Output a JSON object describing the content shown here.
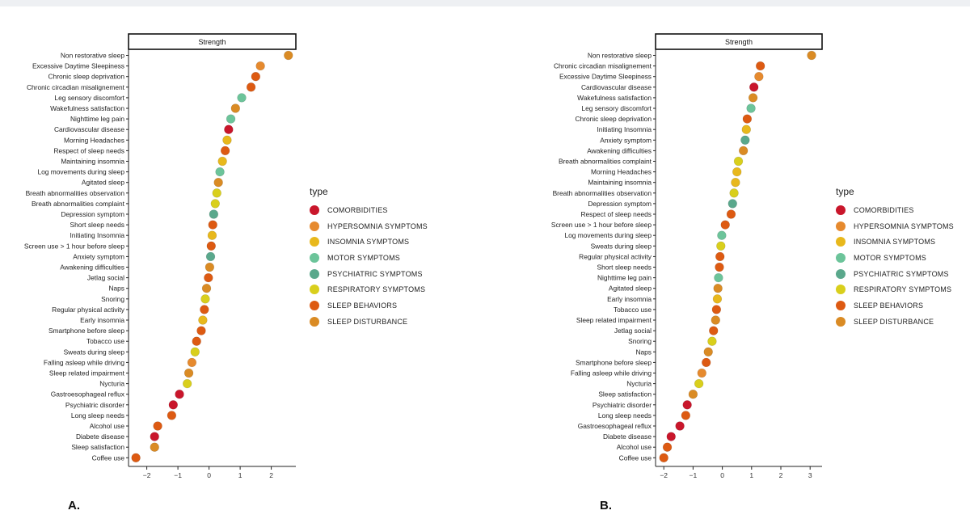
{
  "colors": {
    "COMORBIDITIES": "#c9162b",
    "HYPERSOMNIA SYMPTOMS": "#e68a2e",
    "INSOMNIA SYMPTOMS": "#e8b81c",
    "MOTOR SYMPTOMS": "#6cc49a",
    "PSYCHIATRIC SYMPTOMS": "#5aa88c",
    "RESPIRATORY SYMPTOMS": "#d9cf1c",
    "SLEEP BEHAVIORS": "#dd5a12",
    "SLEEP DISTURBANCE": "#da8b24"
  },
  "legend": {
    "title": "type",
    "items": [
      "COMORBIDITIES",
      "HYPERSOMNIA SYMPTOMS",
      "INSOMNIA SYMPTOMS",
      "MOTOR SYMPTOMS",
      "PSYCHIATRIC SYMPTOMS",
      "RESPIRATORY SYMPTOMS",
      "SLEEP BEHAVIORS",
      "SLEEP DISTURBANCE"
    ]
  },
  "chart_data": [
    {
      "panel": "A.",
      "type": "scatter",
      "title": "Strength",
      "xlim": [
        -2.5,
        2.7
      ],
      "xticks": [
        -2,
        -1,
        0,
        1,
        2
      ],
      "points": [
        {
          "label": "Non restorative sleep",
          "value": 2.55,
          "type": "SLEEP DISTURBANCE"
        },
        {
          "label": "Excessive Daytime Sleepiness",
          "value": 1.65,
          "type": "HYPERSOMNIA SYMPTOMS"
        },
        {
          "label": "Chronic sleep deprivation",
          "value": 1.5,
          "type": "SLEEP BEHAVIORS"
        },
        {
          "label": "Chronic circadian misalignement",
          "value": 1.35,
          "type": "SLEEP BEHAVIORS"
        },
        {
          "label": "Leg sensory discomfort",
          "value": 1.05,
          "type": "MOTOR SYMPTOMS"
        },
        {
          "label": "Wakefulness satisfaction",
          "value": 0.85,
          "type": "SLEEP DISTURBANCE"
        },
        {
          "label": "Nighttime leg pain",
          "value": 0.7,
          "type": "MOTOR SYMPTOMS"
        },
        {
          "label": "Cardiovascular disease",
          "value": 0.63,
          "type": "COMORBIDITIES"
        },
        {
          "label": "Morning Headaches",
          "value": 0.58,
          "type": "INSOMNIA SYMPTOMS"
        },
        {
          "label": "Respect of sleep needs",
          "value": 0.52,
          "type": "SLEEP BEHAVIORS"
        },
        {
          "label": "Maintaining insomnia",
          "value": 0.43,
          "type": "INSOMNIA SYMPTOMS"
        },
        {
          "label": "Log movements during sleep",
          "value": 0.35,
          "type": "MOTOR SYMPTOMS"
        },
        {
          "label": "Agitated sleep",
          "value": 0.3,
          "type": "SLEEP DISTURBANCE"
        },
        {
          "label": "Breath abnormalities observation",
          "value": 0.25,
          "type": "RESPIRATORY SYMPTOMS"
        },
        {
          "label": "Breath abnormalities complaint",
          "value": 0.2,
          "type": "RESPIRATORY SYMPTOMS"
        },
        {
          "label": "Depression symptom",
          "value": 0.15,
          "type": "PSYCHIATRIC SYMPTOMS"
        },
        {
          "label": "Short sleep needs",
          "value": 0.12,
          "type": "SLEEP BEHAVIORS"
        },
        {
          "label": "Initiating Insomnia",
          "value": 0.1,
          "type": "INSOMNIA SYMPTOMS"
        },
        {
          "label": "Screen use > 1 hour before sleep",
          "value": 0.07,
          "type": "SLEEP BEHAVIORS"
        },
        {
          "label": "Anxiety symptom",
          "value": 0.05,
          "type": "PSYCHIATRIC SYMPTOMS"
        },
        {
          "label": "Awakening difficulties",
          "value": 0.02,
          "type": "SLEEP DISTURBANCE"
        },
        {
          "label": "Jetlag social",
          "value": -0.02,
          "type": "SLEEP BEHAVIORS"
        },
        {
          "label": "Naps",
          "value": -0.08,
          "type": "SLEEP DISTURBANCE"
        },
        {
          "label": "Snoring",
          "value": -0.12,
          "type": "RESPIRATORY SYMPTOMS"
        },
        {
          "label": "Regular physical activity",
          "value": -0.15,
          "type": "SLEEP BEHAVIORS"
        },
        {
          "label": "Early insomnia",
          "value": -0.2,
          "type": "INSOMNIA SYMPTOMS"
        },
        {
          "label": "Smartphone before sleep",
          "value": -0.25,
          "type": "SLEEP BEHAVIORS"
        },
        {
          "label": "Tobacco use",
          "value": -0.4,
          "type": "SLEEP BEHAVIORS"
        },
        {
          "label": "Sweats during sleep",
          "value": -0.45,
          "type": "RESPIRATORY SYMPTOMS"
        },
        {
          "label": "Falling asleep while driving",
          "value": -0.55,
          "type": "HYPERSOMNIA SYMPTOMS"
        },
        {
          "label": "Sleep related impairment",
          "value": -0.65,
          "type": "SLEEP DISTURBANCE"
        },
        {
          "label": "Nycturia",
          "value": -0.7,
          "type": "RESPIRATORY SYMPTOMS"
        },
        {
          "label": "Gastroesophageal reflux",
          "value": -0.95,
          "type": "COMORBIDITIES"
        },
        {
          "label": "Psychiatric disorder",
          "value": -1.15,
          "type": "COMORBIDITIES"
        },
        {
          "label": "Long sleep needs",
          "value": -1.2,
          "type": "SLEEP BEHAVIORS"
        },
        {
          "label": "Alcohol use",
          "value": -1.65,
          "type": "SLEEP BEHAVIORS"
        },
        {
          "label": "Diabete disease",
          "value": -1.75,
          "type": "COMORBIDITIES"
        },
        {
          "label": "Sleep satisfaction",
          "value": -1.75,
          "type": "SLEEP DISTURBANCE"
        },
        {
          "label": "Coffee use",
          "value": -2.35,
          "type": "SLEEP BEHAVIORS"
        }
      ]
    },
    {
      "panel": "B.",
      "type": "scatter",
      "title": "Strength",
      "xlim": [
        -2.2,
        3.3
      ],
      "xticks": [
        -2,
        -1,
        0,
        1,
        2,
        3
      ],
      "points": [
        {
          "label": "Non restorative sleep",
          "value": 3.05,
          "type": "SLEEP DISTURBANCE"
        },
        {
          "label": "Chronic circadian misalignement",
          "value": 1.3,
          "type": "SLEEP BEHAVIORS"
        },
        {
          "label": "Excessive Daytime Sleepiness",
          "value": 1.25,
          "type": "HYPERSOMNIA SYMPTOMS"
        },
        {
          "label": "Cardiovascular disease",
          "value": 1.08,
          "type": "COMORBIDITIES"
        },
        {
          "label": "Wakefulness satisfaction",
          "value": 1.05,
          "type": "SLEEP DISTURBANCE"
        },
        {
          "label": "Leg sensory discomfort",
          "value": 0.98,
          "type": "MOTOR SYMPTOMS"
        },
        {
          "label": "Chronic sleep deprivation",
          "value": 0.85,
          "type": "SLEEP BEHAVIORS"
        },
        {
          "label": "Initiating Insomnia",
          "value": 0.82,
          "type": "INSOMNIA SYMPTOMS"
        },
        {
          "label": "Anxiety symptom",
          "value": 0.78,
          "type": "PSYCHIATRIC SYMPTOMS"
        },
        {
          "label": "Awakening difficulties",
          "value": 0.72,
          "type": "SLEEP DISTURBANCE"
        },
        {
          "label": "Breath abnormalities complaint",
          "value": 0.55,
          "type": "RESPIRATORY SYMPTOMS"
        },
        {
          "label": "Morning Headaches",
          "value": 0.5,
          "type": "INSOMNIA SYMPTOMS"
        },
        {
          "label": "Maintaining insomnia",
          "value": 0.45,
          "type": "INSOMNIA SYMPTOMS"
        },
        {
          "label": "Breath abnormalities observation",
          "value": 0.4,
          "type": "RESPIRATORY SYMPTOMS"
        },
        {
          "label": "Depression symptom",
          "value": 0.35,
          "type": "PSYCHIATRIC SYMPTOMS"
        },
        {
          "label": "Respect of sleep needs",
          "value": 0.3,
          "type": "SLEEP BEHAVIORS"
        },
        {
          "label": "Screen use > 1 hour before sleep",
          "value": 0.1,
          "type": "SLEEP BEHAVIORS"
        },
        {
          "label": "Log movements during sleep",
          "value": -0.02,
          "type": "MOTOR SYMPTOMS"
        },
        {
          "label": "Sweats during sleep",
          "value": -0.05,
          "type": "RESPIRATORY SYMPTOMS"
        },
        {
          "label": "Regular physical activity",
          "value": -0.08,
          "type": "SLEEP BEHAVIORS"
        },
        {
          "label": "Short sleep needs",
          "value": -0.1,
          "type": "SLEEP BEHAVIORS"
        },
        {
          "label": "Nighttime leg pain",
          "value": -0.13,
          "type": "MOTOR SYMPTOMS"
        },
        {
          "label": "Agitated sleep",
          "value": -0.15,
          "type": "SLEEP DISTURBANCE"
        },
        {
          "label": "Early insomnia",
          "value": -0.17,
          "type": "INSOMNIA SYMPTOMS"
        },
        {
          "label": "Tobacco use",
          "value": -0.2,
          "type": "SLEEP BEHAVIORS"
        },
        {
          "label": "Sleep related impairment",
          "value": -0.23,
          "type": "SLEEP DISTURBANCE"
        },
        {
          "label": "Jetlag social",
          "value": -0.3,
          "type": "SLEEP BEHAVIORS"
        },
        {
          "label": "Snoring",
          "value": -0.35,
          "type": "RESPIRATORY SYMPTOMS"
        },
        {
          "label": "Naps",
          "value": -0.48,
          "type": "SLEEP DISTURBANCE"
        },
        {
          "label": "Smartphone before sleep",
          "value": -0.55,
          "type": "SLEEP BEHAVIORS"
        },
        {
          "label": "Falling asleep while driving",
          "value": -0.7,
          "type": "HYPERSOMNIA SYMPTOMS"
        },
        {
          "label": "Nycturia",
          "value": -0.8,
          "type": "RESPIRATORY SYMPTOMS"
        },
        {
          "label": "Sleep satisfaction",
          "value": -1.0,
          "type": "SLEEP DISTURBANCE"
        },
        {
          "label": "Psychiatric disorder",
          "value": -1.2,
          "type": "COMORBIDITIES"
        },
        {
          "label": "Long sleep needs",
          "value": -1.25,
          "type": "SLEEP BEHAVIORS"
        },
        {
          "label": "Gastroesophageal reflux",
          "value": -1.45,
          "type": "COMORBIDITIES"
        },
        {
          "label": "Diabete disease",
          "value": -1.75,
          "type": "COMORBIDITIES"
        },
        {
          "label": "Alcohol use",
          "value": -1.88,
          "type": "SLEEP BEHAVIORS"
        },
        {
          "label": "Coffee use",
          "value": -2.0,
          "type": "SLEEP BEHAVIORS"
        }
      ]
    }
  ]
}
